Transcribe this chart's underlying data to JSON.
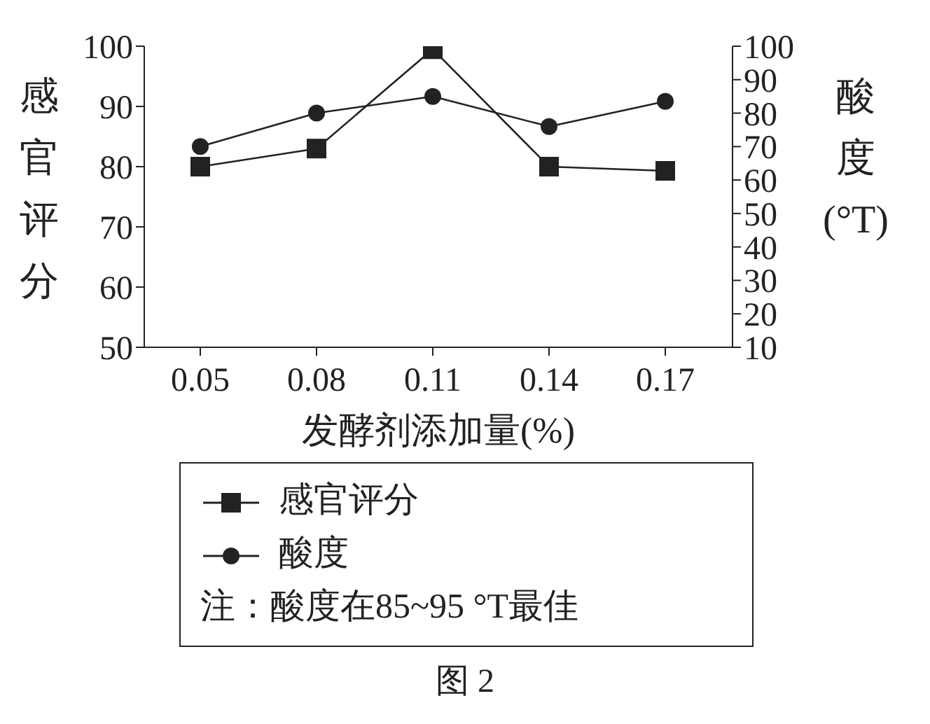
{
  "chart_data": {
    "type": "line",
    "xlabel": "发酵剂添加量(%)",
    "ylabel": "感官评分",
    "y2label": "酸度(°T)",
    "categories": [
      "0.05",
      "0.08",
      "0.11",
      "0.14",
      "0.17"
    ],
    "series": [
      {
        "name": "感官评分",
        "color": "#222222",
        "marker": "square",
        "values": [
          80,
          83,
          99.5,
          80,
          79.3
        ]
      },
      {
        "name": "酸度",
        "color": "#222222",
        "marker": "circle",
        "axis": "y2",
        "values": [
          70,
          80,
          85,
          76,
          83.5
        ]
      }
    ],
    "ylim": [
      50,
      100
    ],
    "yticks": [
      50,
      60,
      70,
      80,
      90,
      100
    ],
    "y2lim": [
      10,
      100
    ],
    "y2ticks": [
      10,
      20,
      30,
      40,
      50,
      60,
      70,
      80,
      90,
      100
    ],
    "legend": "bottom",
    "annotations": [
      "注：酸度在85~95 °T最佳",
      "图 2"
    ]
  }
}
